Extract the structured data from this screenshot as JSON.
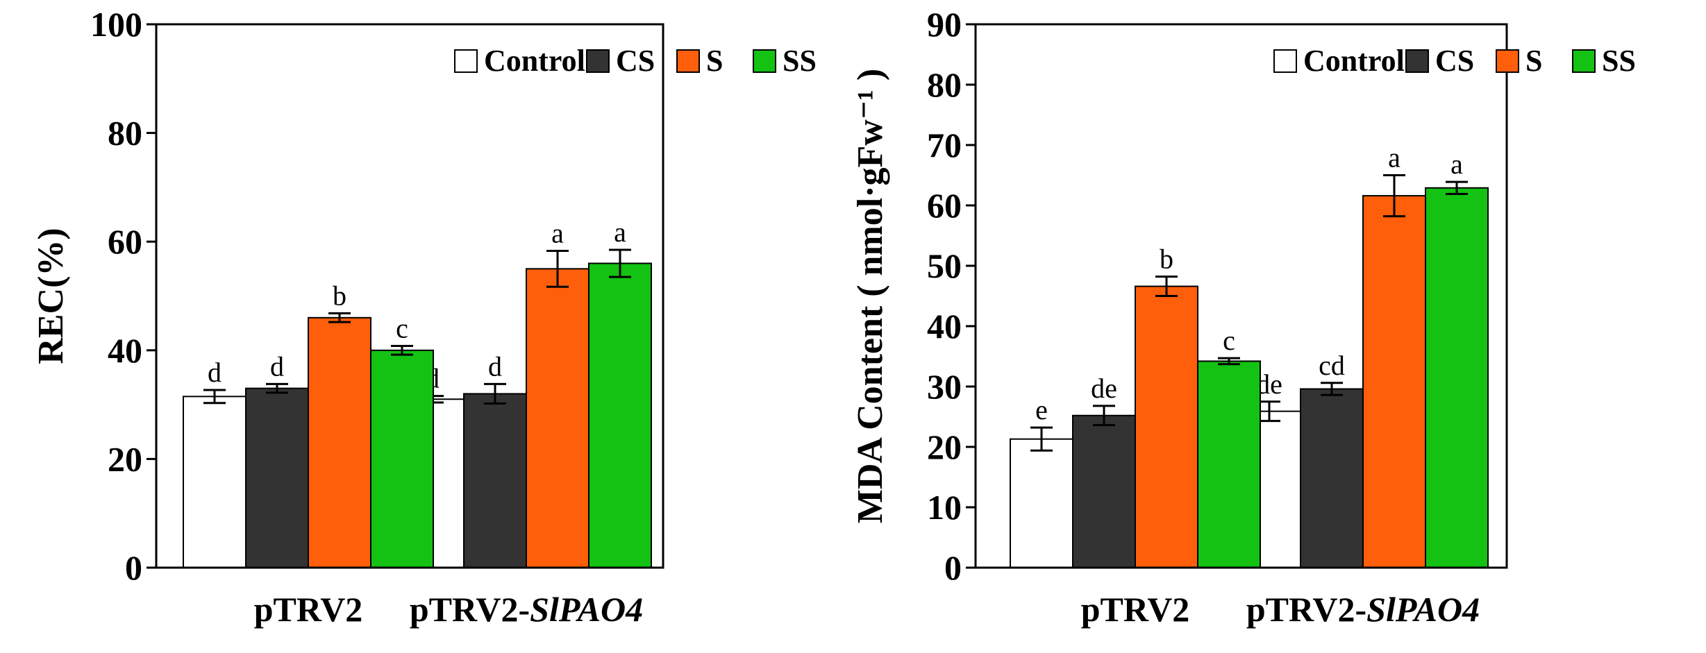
{
  "colors": {
    "Control": "#ffffff",
    "CS": "#333333",
    "S": "#ff5f0a",
    "SS": "#14c214"
  },
  "legend": [
    "Control",
    "CS",
    "S",
    "SS"
  ],
  "chart_data": [
    {
      "type": "bar",
      "title": "",
      "ylabel": "REC(%)",
      "ylim": [
        0,
        100
      ],
      "yticks": [
        0,
        20,
        40,
        60,
        80,
        100
      ],
      "ytick_labels": [
        "0",
        "20",
        "40",
        "60",
        "80",
        "100"
      ],
      "categories": [
        {
          "prefix": "pTRV2",
          "italic": ""
        },
        {
          "prefix": "pTRV2-",
          "italic": "SlPAO4"
        }
      ],
      "series": [
        {
          "name": "Control",
          "values": [
            31.5,
            31.0
          ],
          "errors": [
            1.2,
            0.6
          ],
          "letters": [
            "d",
            "d"
          ]
        },
        {
          "name": "CS",
          "values": [
            33.0,
            32.0
          ],
          "errors": [
            0.8,
            1.8
          ],
          "letters": [
            "d",
            "d"
          ]
        },
        {
          "name": "S",
          "values": [
            46.0,
            55.0
          ],
          "errors": [
            0.8,
            3.3
          ],
          "letters": [
            "b",
            "a"
          ]
        },
        {
          "name": "SS",
          "values": [
            40.0,
            56.0
          ],
          "errors": [
            0.8,
            2.5
          ],
          "letters": [
            "c",
            "a"
          ]
        }
      ]
    },
    {
      "type": "bar",
      "title": "",
      "ylabel": "MDA Content ( nmol·gFw⁻¹ )",
      "ylim": [
        0,
        90
      ],
      "yticks": [
        0,
        10,
        20,
        30,
        40,
        50,
        60,
        70,
        80,
        90
      ],
      "ytick_labels": [
        "0",
        "10",
        "20",
        "30",
        "40",
        "50",
        "60",
        "70",
        "80",
        "90"
      ],
      "categories": [
        {
          "prefix": "pTRV2",
          "italic": ""
        },
        {
          "prefix": "pTRV2-",
          "italic": "SlPAO4"
        }
      ],
      "series": [
        {
          "name": "Control",
          "values": [
            21.3,
            25.9
          ],
          "errors": [
            1.9,
            1.6
          ],
          "letters": [
            "e",
            "de"
          ]
        },
        {
          "name": "CS",
          "values": [
            25.2,
            29.6
          ],
          "errors": [
            1.6,
            1.0
          ],
          "letters": [
            "de",
            "cd"
          ]
        },
        {
          "name": "S",
          "values": [
            46.6,
            61.6
          ],
          "errors": [
            1.6,
            3.4
          ],
          "letters": [
            "b",
            "a"
          ]
        },
        {
          "name": "SS",
          "values": [
            34.2,
            62.9
          ],
          "errors": [
            0.5,
            1.0
          ],
          "letters": [
            "c",
            "a"
          ]
        }
      ]
    }
  ]
}
